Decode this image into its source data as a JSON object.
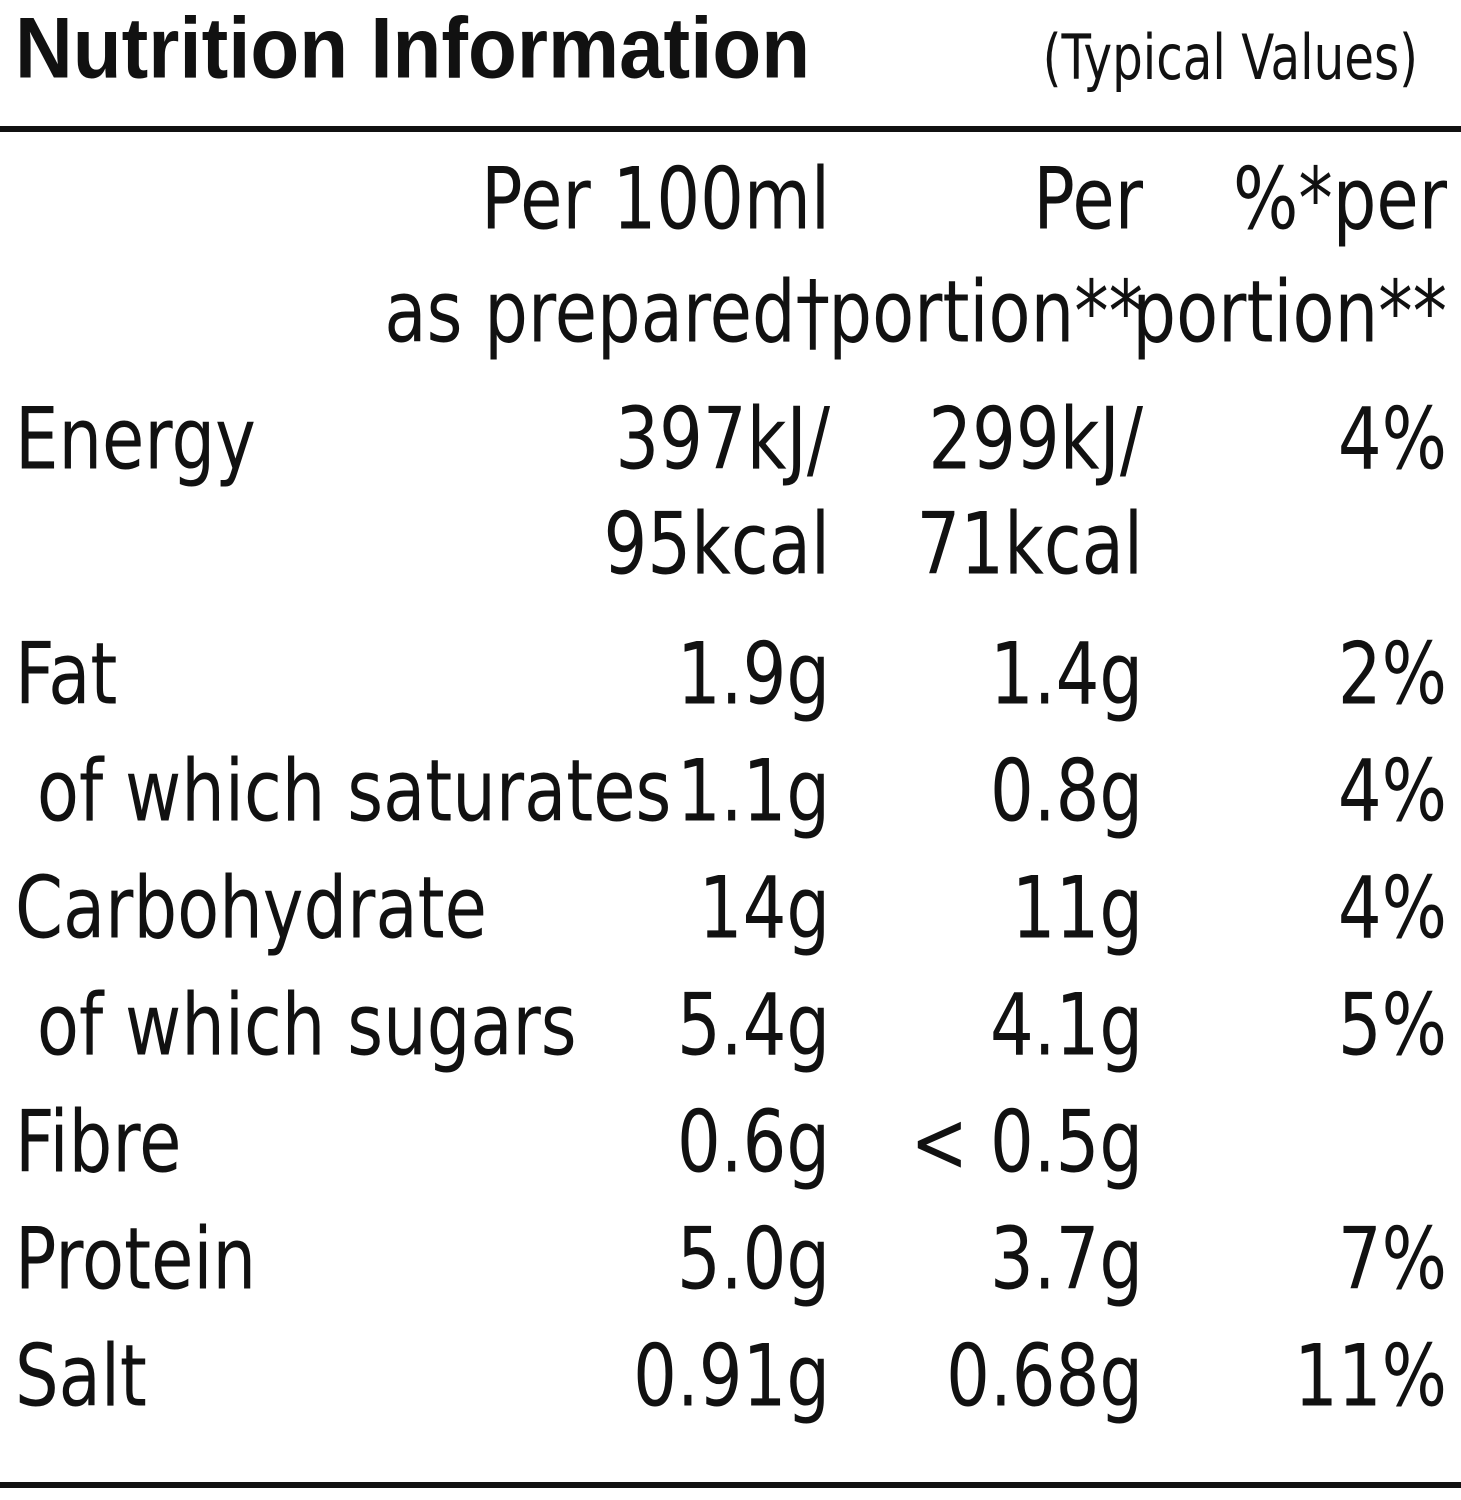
{
  "header": {
    "title": "Nutrition Information",
    "subtitle": "(Typical Values)"
  },
  "table": {
    "columns": [
      [
        "Per 100ml",
        "as prepared†"
      ],
      [
        "Per",
        "portion**"
      ],
      [
        "%*per",
        "portion**"
      ]
    ],
    "rows": [
      [
        "Energy",
        [
          "397kJ/",
          "95kcal"
        ],
        [
          "299kJ/",
          "71kcal"
        ],
        "4%"
      ],
      [
        "Fat",
        "1.9g",
        "1.4g",
        "2%"
      ],
      [
        " of which saturates",
        "1.1g",
        "0.8g",
        "4%"
      ],
      [
        "Carbohydrate",
        "14g",
        "11g",
        "4%"
      ],
      [
        " of which sugars",
        "5.4g",
        "4.1g",
        "5%"
      ],
      [
        "Fibre",
        "0.6g",
        "< 0.5g",
        null
      ],
      [
        "Protein",
        "5.0g",
        "3.7g",
        "7%"
      ],
      [
        "Salt",
        "0.91g",
        "0.68g",
        "11%"
      ]
    ]
  }
}
